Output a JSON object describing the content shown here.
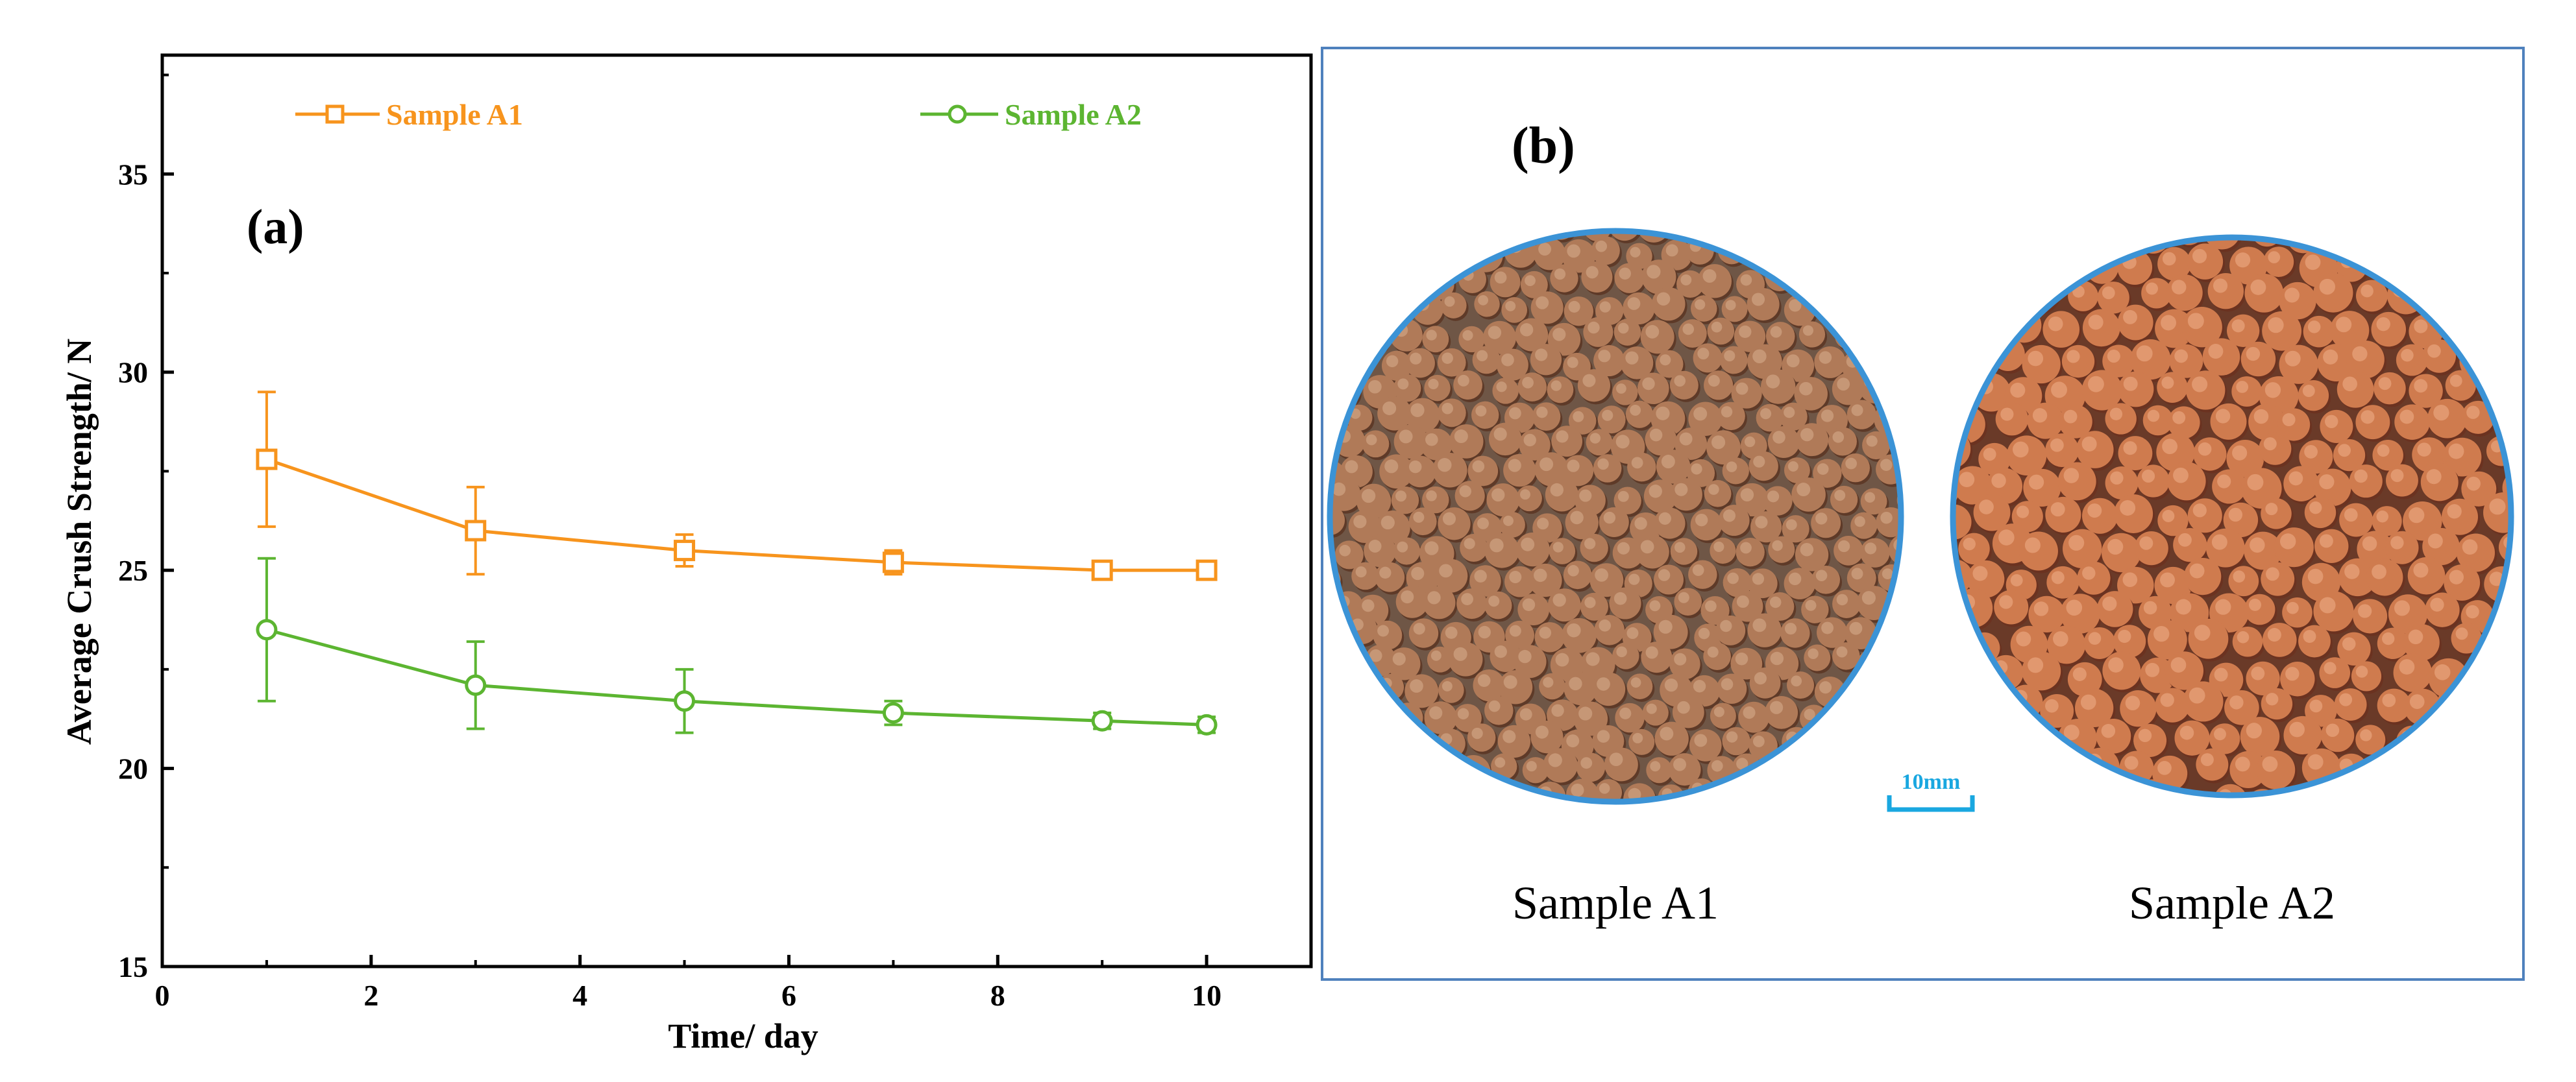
{
  "chart_data": {
    "type": "line",
    "panel_label": "(a)",
    "title": "",
    "xlabel": "Time/ day",
    "ylabel": "Average Crush Strength/ N",
    "xlim": [
      0,
      11
    ],
    "ylim": [
      15,
      38
    ],
    "xticks": [
      0,
      2,
      4,
      6,
      8,
      10
    ],
    "yticks": [
      15,
      20,
      25,
      30,
      35
    ],
    "grid": false,
    "legend_position": "top",
    "x": [
      1,
      3,
      5,
      7,
      9,
      10
    ],
    "series": [
      {
        "name": "Sample A1",
        "marker": "square",
        "color": "#f7941d",
        "values": [
          27.8,
          26.0,
          25.5,
          25.2,
          25.0,
          25.0
        ],
        "error": [
          1.7,
          1.1,
          0.4,
          0.3,
          0.2,
          0.2
        ]
      },
      {
        "name": "Sample A2",
        "marker": "circle",
        "color": "#5cb531",
        "values": [
          23.5,
          22.1,
          21.7,
          21.4,
          21.2,
          21.1
        ],
        "error": [
          1.8,
          1.1,
          0.8,
          0.3,
          0.2,
          0.2
        ]
      }
    ]
  },
  "photo_panel": {
    "label": "(b)",
    "samples": [
      "Sample A1",
      "Sample A2"
    ],
    "scale_bar": "10mm",
    "colors": {
      "border": "#4f81bd",
      "circle_border": "#3b93d6",
      "scale_bar": "#19a7e0",
      "pellet_a1": "#b07a58",
      "pellet_a2": "#cf7b4e",
      "pellet_shadow_a1": "#5e3a28",
      "pellet_shadow_a2": "#6b3220"
    }
  }
}
